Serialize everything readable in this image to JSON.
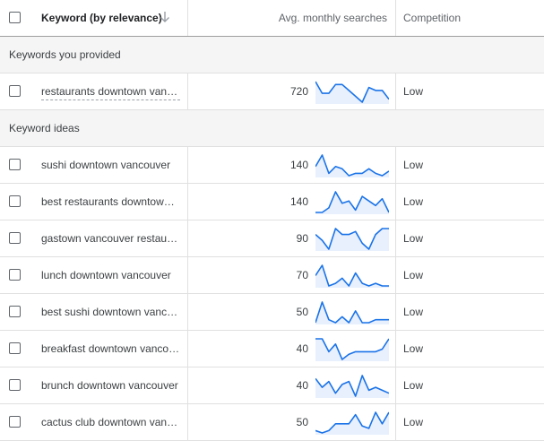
{
  "header": {
    "keyword_label": "Keyword (by relevance)",
    "sort_icon": "arrow-down-icon",
    "avg_label": "Avg. monthly searches",
    "competition_label": "Competition"
  },
  "sections": {
    "provided_label": "Keywords you provided",
    "ideas_label": "Keyword ideas"
  },
  "provided": [
    {
      "keyword": "restaurants downtown vancouver",
      "avg": "720",
      "competition": "Low",
      "trend": [
        7,
        3,
        3,
        6,
        6,
        4,
        2,
        0,
        5,
        4,
        4,
        1
      ]
    }
  ],
  "ideas": [
    {
      "keyword": "sushi downtown vancouver",
      "avg": "140",
      "competition": "Low",
      "trend": [
        5,
        10,
        2,
        5,
        4,
        1,
        2,
        2,
        4,
        2,
        1,
        3
      ]
    },
    {
      "keyword": "best restaurants downtown vancouver",
      "avg": "140",
      "competition": "Low",
      "trend": [
        0,
        0,
        2,
        9,
        4,
        5,
        1,
        7,
        5,
        3,
        6,
        0
      ]
    },
    {
      "keyword": "gastown vancouver restaurants",
      "avg": "90",
      "competition": "Low",
      "trend": [
        6,
        4,
        1,
        8,
        6,
        6,
        7,
        3,
        1,
        6,
        8,
        8
      ]
    },
    {
      "keyword": "lunch downtown vancouver",
      "avg": "70",
      "competition": "Low",
      "trend": [
        5,
        9,
        1,
        2,
        4,
        1,
        6,
        2,
        1,
        2,
        1,
        1
      ]
    },
    {
      "keyword": "best sushi downtown vancouver",
      "avg": "50",
      "competition": "Low",
      "trend": [
        1,
        8,
        2,
        1,
        3,
        1,
        5,
        1,
        1,
        2,
        2,
        2
      ]
    },
    {
      "keyword": "breakfast downtown vancouver",
      "avg": "40",
      "competition": "Low",
      "trend": [
        8,
        8,
        3,
        6,
        0,
        2,
        3,
        3,
        3,
        3,
        4,
        8
      ]
    },
    {
      "keyword": "brunch downtown vancouver",
      "avg": "40",
      "competition": "Low",
      "trend": [
        6,
        3,
        5,
        1,
        4,
        5,
        0,
        7,
        2,
        3,
        2,
        1
      ]
    },
    {
      "keyword": "cactus club downtown vancouver",
      "avg": "50",
      "competition": "Low",
      "trend": [
        1,
        0,
        1,
        4,
        4,
        4,
        8,
        3,
        2,
        9,
        4,
        9
      ]
    }
  ],
  "colors": {
    "spark_line": "#1a73e8",
    "spark_fill": "#e8f0fe"
  }
}
